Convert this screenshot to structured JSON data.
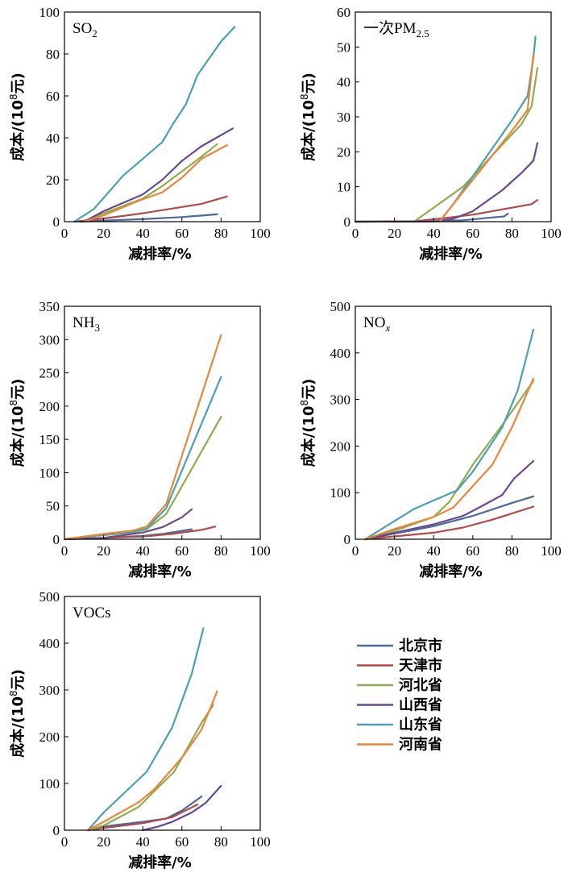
{
  "legend": [
    {
      "name": "北京市",
      "color": "#4a6a9c"
    },
    {
      "name": "天津市",
      "color": "#b24a4a"
    },
    {
      "name": "河北省",
      "color": "#8fad4e"
    },
    {
      "name": "山西省",
      "color": "#6a4a8f"
    },
    {
      "name": "山东省",
      "color": "#4aa0b0"
    },
    {
      "name": "河南省",
      "color": "#e8873a"
    }
  ],
  "chart_data": [
    {
      "type": "line",
      "title_main": "SO",
      "title_sub": "2",
      "title_sub_style": "sub",
      "xlabel": "减排率/%",
      "ylabel_pre": "成本/(10",
      "ylabel_sup": "8",
      "ylabel_post": "元)",
      "xlim": [
        0,
        100
      ],
      "ylim": [
        0,
        100
      ],
      "xticks": [
        0,
        20,
        40,
        60,
        80,
        100
      ],
      "yticks": [
        0,
        20,
        40,
        60,
        80,
        100
      ],
      "series": [
        {
          "name": "北京市",
          "points": [
            [
              8,
              0
            ],
            [
              20,
              0.5
            ],
            [
              40,
              1.2
            ],
            [
              60,
              2.2
            ],
            [
              78,
              3.5
            ]
          ]
        },
        {
          "name": "天津市",
          "points": [
            [
              5,
              0
            ],
            [
              20,
              1.5
            ],
            [
              40,
              4
            ],
            [
              60,
              7
            ],
            [
              70,
              8.5
            ],
            [
              83,
              12
            ]
          ]
        },
        {
          "name": "河北省",
          "points": [
            [
              10,
              0
            ],
            [
              20,
              4
            ],
            [
              40,
              11
            ],
            [
              50,
              17
            ],
            [
              60,
              24
            ],
            [
              70,
              31
            ],
            [
              78,
              37
            ]
          ]
        },
        {
          "name": "山西省",
          "points": [
            [
              10,
              0
            ],
            [
              20,
              5
            ],
            [
              40,
              13
            ],
            [
              50,
              20
            ],
            [
              60,
              29
            ],
            [
              70,
              36
            ],
            [
              86,
              44.5
            ]
          ]
        },
        {
          "name": "山东省",
          "points": [
            [
              5,
              0
            ],
            [
              15,
              6
            ],
            [
              30,
              22
            ],
            [
              50,
              38
            ],
            [
              55,
              46
            ],
            [
              62,
              56
            ],
            [
              68,
              70
            ],
            [
              80,
              86
            ],
            [
              87,
              93
            ]
          ]
        },
        {
          "name": "河南省",
          "points": [
            [
              10,
              0
            ],
            [
              20,
              3
            ],
            [
              38,
              10
            ],
            [
              50,
              14
            ],
            [
              60,
              21
            ],
            [
              70,
              30
            ],
            [
              83,
              36.5
            ]
          ]
        }
      ]
    },
    {
      "type": "line",
      "title_main": "一次PM",
      "title_sub": "2.5",
      "title_sub_style": "sub",
      "xlabel": "减排率/%",
      "ylabel_pre": "成本/(10",
      "ylabel_sup": "8",
      "ylabel_post": "元)",
      "xlim": [
        0,
        100
      ],
      "ylim": [
        0,
        60
      ],
      "xticks": [
        0,
        20,
        40,
        60,
        80,
        100
      ],
      "yticks": [
        0,
        10,
        20,
        30,
        40,
        50,
        60
      ],
      "series": [
        {
          "name": "北京市",
          "points": [
            [
              0,
              0
            ],
            [
              40,
              0.1
            ],
            [
              55,
              0.4
            ],
            [
              70,
              1.2
            ],
            [
              76,
              1.5
            ],
            [
              78,
              2.3
            ]
          ]
        },
        {
          "name": "天津市",
          "points": [
            [
              0,
              0
            ],
            [
              30,
              0.1
            ],
            [
              45,
              1
            ],
            [
              60,
              2
            ],
            [
              75,
              3.5
            ],
            [
              90,
              5
            ],
            [
              93,
              6.2
            ]
          ]
        },
        {
          "name": "河北省",
          "points": [
            [
              30,
              0
            ],
            [
              40,
              4
            ],
            [
              55,
              10
            ],
            [
              70,
              19
            ],
            [
              85,
              28
            ],
            [
              90,
              33
            ],
            [
              93,
              44
            ]
          ]
        },
        {
          "name": "山西省",
          "points": [
            [
              0,
              0
            ],
            [
              40,
              0.1
            ],
            [
              50,
              0.8
            ],
            [
              60,
              3
            ],
            [
              75,
              9
            ],
            [
              85,
              14
            ],
            [
              91,
              17.5
            ],
            [
              93,
              22.5
            ]
          ]
        },
        {
          "name": "山东省",
          "points": [
            [
              43,
              0
            ],
            [
              50,
              5
            ],
            [
              60,
              13
            ],
            [
              70,
              21
            ],
            [
              80,
              29
            ],
            [
              88,
              36
            ],
            [
              91,
              47
            ],
            [
              92,
              53
            ]
          ]
        },
        {
          "name": "河南省",
          "points": [
            [
              43,
              0
            ],
            [
              50,
              5
            ],
            [
              60,
              12
            ],
            [
              70,
              19
            ],
            [
              80,
              26
            ],
            [
              88,
              32
            ],
            [
              91,
              48
            ]
          ]
        }
      ]
    },
    {
      "type": "line",
      "title_main": "NH",
      "title_sub": "3",
      "title_sub_style": "sub",
      "xlabel": "减排率/%",
      "ylabel_pre": "成本/(10",
      "ylabel_sup": "8",
      "ylabel_post": "元)",
      "xlim": [
        0,
        100
      ],
      "ylim": [
        0,
        350
      ],
      "xticks": [
        0,
        20,
        40,
        60,
        80,
        100
      ],
      "yticks": [
        0,
        50,
        100,
        150,
        200,
        250,
        300,
        350
      ],
      "series": [
        {
          "name": "北京市",
          "points": [
            [
              0,
              0
            ],
            [
              20,
              2
            ],
            [
              40,
              5
            ],
            [
              50,
              8
            ],
            [
              65,
              15
            ]
          ]
        },
        {
          "name": "天津市",
          "points": [
            [
              0,
              0
            ],
            [
              20,
              2
            ],
            [
              40,
              4
            ],
            [
              55,
              8
            ],
            [
              70,
              14
            ],
            [
              77,
              19
            ]
          ]
        },
        {
          "name": "河北省",
          "points": [
            [
              0,
              0
            ],
            [
              20,
              6
            ],
            [
              35,
              10
            ],
            [
              42,
              15
            ],
            [
              52,
              38
            ],
            [
              80,
              184
            ]
          ]
        },
        {
          "name": "山西省",
          "points": [
            [
              0,
              0
            ],
            [
              20,
              2
            ],
            [
              40,
              10
            ],
            [
              50,
              18
            ],
            [
              60,
              33
            ],
            [
              65,
              45
            ]
          ]
        },
        {
          "name": "山东省",
          "points": [
            [
              0,
              0
            ],
            [
              20,
              7
            ],
            [
              35,
              11
            ],
            [
              42,
              16
            ],
            [
              52,
              47
            ],
            [
              80,
              244
            ]
          ]
        },
        {
          "name": "河南省",
          "points": [
            [
              0,
              0
            ],
            [
              20,
              8
            ],
            [
              35,
              13
            ],
            [
              42,
              19
            ],
            [
              52,
              53
            ],
            [
              80,
              307
            ]
          ]
        }
      ]
    },
    {
      "type": "line",
      "title_main": "NO",
      "title_sub": "x",
      "title_sub_style": "sub-italic",
      "xlabel": "减排率/%",
      "ylabel_pre": "成本/(10",
      "ylabel_sup": "8",
      "ylabel_post": "元)",
      "xlim": [
        0,
        100
      ],
      "ylim": [
        0,
        500
      ],
      "xticks": [
        0,
        20,
        40,
        60,
        80,
        100
      ],
      "yticks": [
        0,
        100,
        200,
        300,
        400,
        500
      ],
      "series": [
        {
          "name": "北京市",
          "points": [
            [
              5,
              0
            ],
            [
              20,
              12
            ],
            [
              40,
              28
            ],
            [
              60,
              50
            ],
            [
              80,
              78
            ],
            [
              91,
              92
            ]
          ]
        },
        {
          "name": "天津市",
          "points": [
            [
              5,
              0
            ],
            [
              20,
              6
            ],
            [
              40,
              14
            ],
            [
              55,
              25
            ],
            [
              70,
              42
            ],
            [
              91,
              70
            ]
          ]
        },
        {
          "name": "河北省",
          "points": [
            [
              5,
              0
            ],
            [
              20,
              18
            ],
            [
              40,
              48
            ],
            [
              48,
              80
            ],
            [
              60,
              160
            ],
            [
              75,
              245
            ],
            [
              91,
              340
            ]
          ]
        },
        {
          "name": "山西省",
          "points": [
            [
              5,
              0
            ],
            [
              20,
              14
            ],
            [
              40,
              32
            ],
            [
              55,
              50
            ],
            [
              65,
              72
            ],
            [
              75,
              95
            ],
            [
              81,
              130
            ],
            [
              91,
              168
            ]
          ]
        },
        {
          "name": "山东省",
          "points": [
            [
              5,
              0
            ],
            [
              30,
              65
            ],
            [
              52,
              105
            ],
            [
              60,
              145
            ],
            [
              75,
              240
            ],
            [
              83,
              320
            ],
            [
              91,
              450
            ]
          ]
        },
        {
          "name": "河南省",
          "points": [
            [
              5,
              0
            ],
            [
              20,
              22
            ],
            [
              40,
              48
            ],
            [
              50,
              68
            ],
            [
              70,
              160
            ],
            [
              80,
              240
            ],
            [
              91,
              345
            ]
          ]
        }
      ]
    },
    {
      "type": "line",
      "title_main": "VOCs",
      "title_sub": "",
      "title_sub_style": "none",
      "xlabel": "减排率/%",
      "ylabel_pre": "成本/(10",
      "ylabel_sup": "8",
      "ylabel_post": "元)",
      "xlim": [
        0,
        100
      ],
      "ylim": [
        0,
        500
      ],
      "xticks": [
        0,
        20,
        40,
        60,
        80,
        100
      ],
      "yticks": [
        0,
        100,
        200,
        300,
        400,
        500
      ],
      "series": [
        {
          "name": "北京市",
          "points": [
            [
              12,
              0
            ],
            [
              20,
              8
            ],
            [
              40,
              18
            ],
            [
              52,
              25
            ],
            [
              60,
              42
            ],
            [
              70,
              72
            ]
          ]
        },
        {
          "name": "天津市",
          "points": [
            [
              12,
              0
            ],
            [
              20,
              5
            ],
            [
              40,
              15
            ],
            [
              55,
              28
            ],
            [
              68,
              55
            ]
          ]
        },
        {
          "name": "河北省",
          "points": [
            [
              12,
              0
            ],
            [
              20,
              10
            ],
            [
              38,
              50
            ],
            [
              45,
              80
            ],
            [
              56,
              125
            ],
            [
              70,
              230
            ],
            [
              76,
              268
            ]
          ]
        },
        {
          "name": "山西省",
          "points": [
            [
              40,
              0
            ],
            [
              48,
              8
            ],
            [
              55,
              18
            ],
            [
              65,
              38
            ],
            [
              72,
              58
            ],
            [
              80,
              95
            ]
          ]
        },
        {
          "name": "山东省",
          "points": [
            [
              12,
              0
            ],
            [
              20,
              38
            ],
            [
              42,
              125
            ],
            [
              55,
              220
            ],
            [
              65,
              335
            ],
            [
              71,
              432
            ]
          ]
        },
        {
          "name": "河南省",
          "points": [
            [
              12,
              0
            ],
            [
              20,
              18
            ],
            [
              38,
              60
            ],
            [
              46,
              88
            ],
            [
              60,
              155
            ],
            [
              70,
              215
            ],
            [
              78,
              297
            ]
          ]
        }
      ]
    }
  ]
}
